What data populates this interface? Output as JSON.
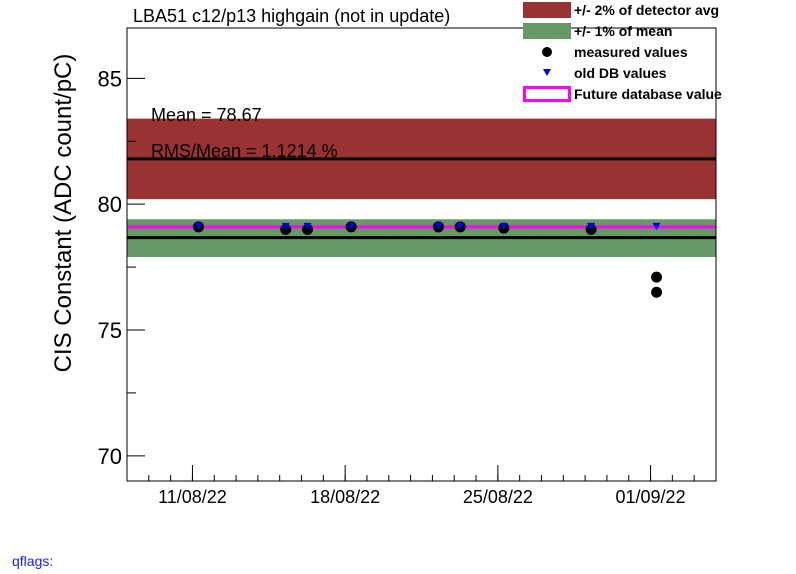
{
  "title": "LBA51 c12/p13 highgain (not in update)",
  "ylabel": "CIS Constant (ADC count/pC)",
  "stats": {
    "mean": "Mean = 78.67",
    "rms": "RMS/Mean = 1.1214 %"
  },
  "qflags": "qflags:",
  "legend": [
    {
      "label": "+/- 2% of detector avg",
      "symbol": "box",
      "color": "#993333"
    },
    {
      "label": "+/- 1% of mean",
      "symbol": "box",
      "color": "#669966"
    },
    {
      "label": "measured values",
      "symbol": "circle",
      "color": "#000000"
    },
    {
      "label": "old DB values",
      "symbol": "triangle",
      "color": "#0000ee"
    },
    {
      "label": "Future database value",
      "symbol": "line",
      "color": "#ff00ff"
    }
  ],
  "chart_data": {
    "type": "scatter",
    "title": "LBA51 c12/p13 highgain (not in update)",
    "ylabel": "CIS Constant (ADC count/pC)",
    "xlabel": "",
    "ylim": [
      69,
      87
    ],
    "xlim": [
      "2022-08-08",
      "2022-09-04"
    ],
    "y_ticks": [
      70,
      75,
      80,
      85
    ],
    "x_ticks": [
      "11/08/22",
      "18/08/22",
      "25/08/22",
      "01/09/22"
    ],
    "x_tick_dates": [
      "2022-08-11",
      "2022-08-18",
      "2022-08-25",
      "2022-09-01"
    ],
    "grid": false,
    "legend_position": "top-right",
    "bands": [
      {
        "name": "+/- 2% of detector avg",
        "color": "#993333",
        "center": 81.8,
        "low": 80.2,
        "high": 83.4
      },
      {
        "name": "+/- 1% of mean",
        "color": "#669966",
        "center": 78.67,
        "low": 77.9,
        "high": 79.4
      }
    ],
    "lines": [
      {
        "name": "detector avg",
        "y": 81.8,
        "color": "#000000"
      },
      {
        "name": "mean",
        "y": 78.67,
        "color": "#000000"
      },
      {
        "name": "Future database value",
        "y": 79.1,
        "color": "#ff00ff"
      }
    ],
    "series": [
      {
        "name": "measured values",
        "marker": "circle",
        "color": "#000000",
        "x": [
          "2022-08-11",
          "2022-08-15",
          "2022-08-16",
          "2022-08-18",
          "2022-08-22",
          "2022-08-23",
          "2022-08-25",
          "2022-08-29",
          "2022-09-01",
          "2022-09-01"
        ],
        "y": [
          79.1,
          79.0,
          79.0,
          79.1,
          79.1,
          79.1,
          79.05,
          79.0,
          77.1,
          76.5
        ]
      },
      {
        "name": "old DB values",
        "marker": "triangle",
        "color": "#0000ee",
        "x": [
          "2022-08-11",
          "2022-08-15",
          "2022-08-16",
          "2022-08-18",
          "2022-08-22",
          "2022-08-23",
          "2022-08-25",
          "2022-08-29",
          "2022-09-01"
        ],
        "y": [
          79.1,
          79.1,
          79.1,
          79.1,
          79.1,
          79.1,
          79.1,
          79.1,
          79.1
        ]
      }
    ]
  }
}
